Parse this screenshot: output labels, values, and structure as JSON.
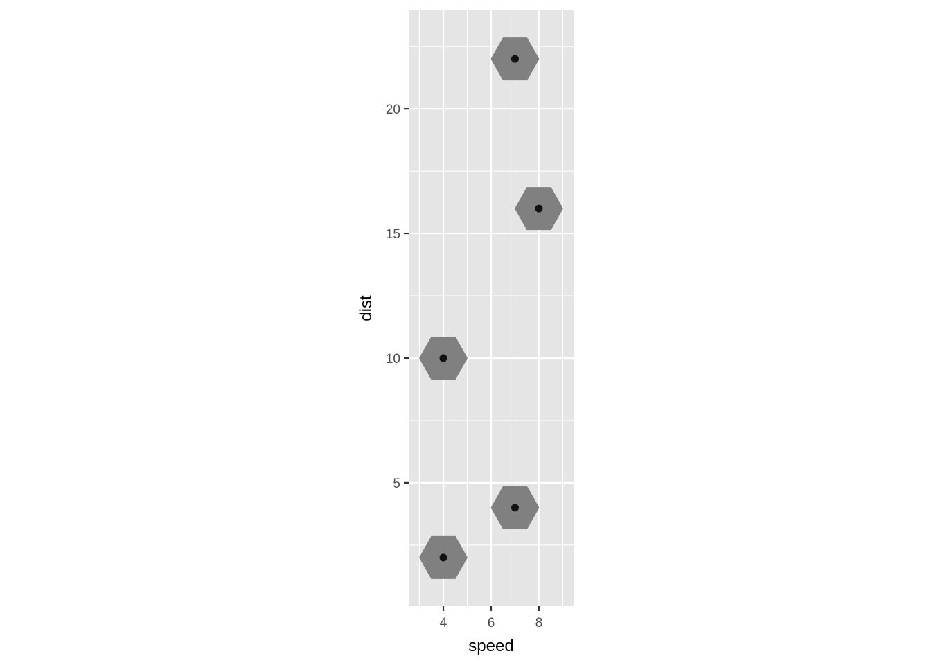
{
  "chart_data": {
    "type": "scatter",
    "title": "",
    "xlabel": "speed",
    "ylabel": "dist",
    "xlim": [
      2.55,
      9.45
    ],
    "ylim": [
      0.05,
      23.95
    ],
    "x_ticks": [
      4,
      6,
      8
    ],
    "x_tick_labels": [
      "4",
      "6",
      "8"
    ],
    "y_ticks": [
      5,
      10,
      15,
      20
    ],
    "y_tick_labels": [
      "5",
      "10",
      "15",
      "20"
    ],
    "grid": true,
    "points": [
      {
        "x": 4,
        "y": 2
      },
      {
        "x": 4,
        "y": 10
      },
      {
        "x": 7,
        "y": 4
      },
      {
        "x": 7,
        "y": 22
      },
      {
        "x": 8,
        "y": 16
      }
    ],
    "hexbin_cells": [
      {
        "x": 4,
        "y": 2,
        "count": 1
      },
      {
        "x": 4,
        "y": 10,
        "count": 1
      },
      {
        "x": 7,
        "y": 4,
        "count": 1
      },
      {
        "x": 7,
        "y": 22,
        "count": 1
      },
      {
        "x": 8,
        "y": 16,
        "count": 1
      }
    ],
    "colors": {
      "panel": "#e5e5e5",
      "grid": "#ffffff",
      "hexagon": "#808080",
      "point": "#111111"
    }
  }
}
